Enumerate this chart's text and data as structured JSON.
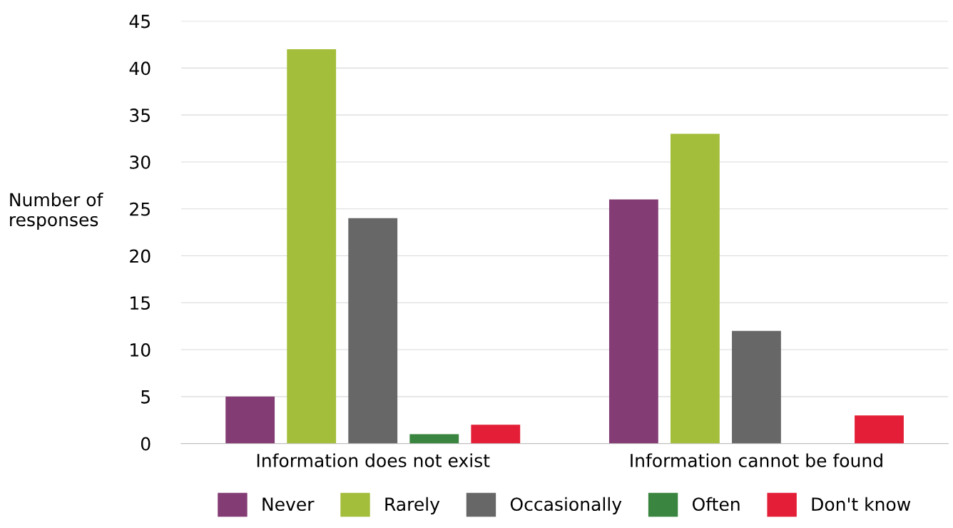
{
  "chart_data": {
    "type": "bar",
    "ylabel": "Number of responses",
    "categories": [
      "Information does not exist",
      "Information cannot be found"
    ],
    "series": [
      {
        "name": "Never",
        "color": "#843c74",
        "values": [
          5,
          26
        ]
      },
      {
        "name": "Rarely",
        "color": "#a3be3a",
        "values": [
          42,
          33
        ]
      },
      {
        "name": "Occasionally",
        "color": "#666766",
        "values": [
          24,
          12
        ]
      },
      {
        "name": "Often",
        "color": "#3a853f",
        "values": [
          1,
          0
        ]
      },
      {
        "name": "Don't know",
        "color": "#e31e36",
        "values": [
          2,
          3
        ]
      }
    ],
    "ylim": [
      0,
      45
    ],
    "yticks": [
      0,
      5,
      10,
      15,
      20,
      25,
      30,
      35,
      40,
      45
    ],
    "grid": "y",
    "legend": "bottom"
  }
}
